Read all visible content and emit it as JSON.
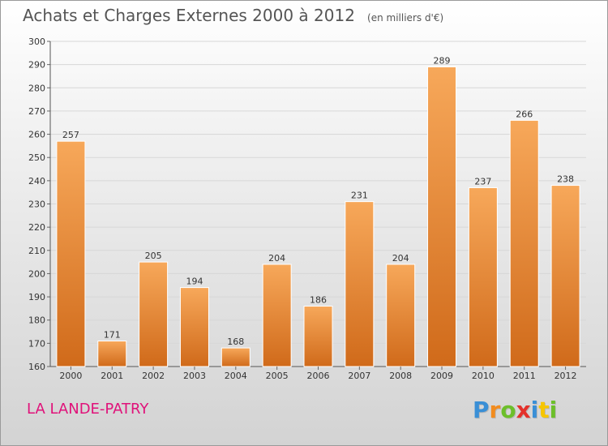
{
  "title": "Achats et Charges Externes 2000 à 2012",
  "unit_note": "(en milliers d'€)",
  "commune": "LA LANDE-PATRY",
  "logo": {
    "letters": [
      "P",
      "r",
      "o",
      "x",
      "i",
      "t",
      "i"
    ],
    "colors": [
      "#3a8fd6",
      "#f28c1e",
      "#6cbf2a",
      "#e4312b",
      "#3a8fd6",
      "#f7c600",
      "#6cbf2a"
    ]
  },
  "colors": {
    "bar_light": "#f7a85a",
    "bar_dark": "#d06a1a",
    "title": "#555555",
    "commune": "#e0127a"
  },
  "chart_data": {
    "type": "bar",
    "title": "Achats et Charges Externes 2000 à 2012",
    "categories": [
      "2000",
      "2001",
      "2002",
      "2003",
      "2004",
      "2005",
      "2006",
      "2007",
      "2008",
      "2009",
      "2010",
      "2011",
      "2012"
    ],
    "values": [
      257,
      171,
      205,
      194,
      168,
      204,
      186,
      231,
      204,
      289,
      237,
      266,
      238
    ],
    "ylim": [
      160,
      300
    ],
    "yticks": [
      160,
      170,
      180,
      190,
      200,
      210,
      220,
      230,
      240,
      250,
      260,
      270,
      280,
      290,
      300
    ],
    "grid": true,
    "xlabel": "",
    "ylabel": ""
  }
}
